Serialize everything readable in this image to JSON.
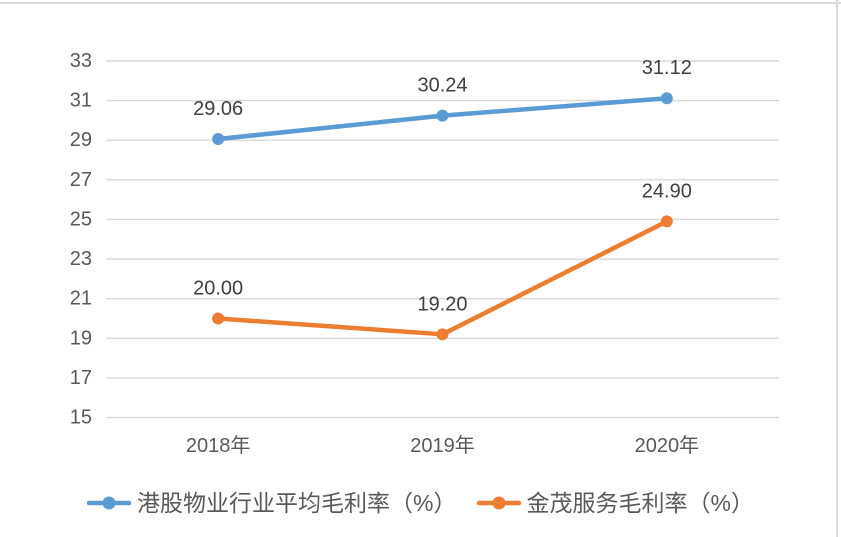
{
  "chart_data": {
    "type": "line",
    "categories": [
      "2018年",
      "2019年",
      "2020年"
    ],
    "series": [
      {
        "name": "港股物业行业平均毛利率（%）",
        "color": "#5B9BD5",
        "values": [
          29.06,
          30.24,
          31.12
        ],
        "data_labels": [
          "29.06",
          "30.24",
          "31.12"
        ]
      },
      {
        "name": "金茂服务毛利率（%）",
        "color": "#ED7D31",
        "values": [
          20.0,
          19.2,
          24.9
        ],
        "data_labels": [
          "20.00",
          "19.20",
          "24.90"
        ]
      }
    ],
    "y_axis": {
      "min": 15,
      "max": 33,
      "step": 2,
      "tick_labels": [
        "15",
        "17",
        "19",
        "21",
        "23",
        "25",
        "27",
        "29",
        "31",
        "33"
      ]
    },
    "x_axis": {
      "tick_labels": [
        "2018年",
        "2019年",
        "2020年"
      ]
    },
    "grid": true,
    "legend_position": "bottom",
    "marker_shape": "circle",
    "colors": {
      "gridline": "#D9D9D9",
      "frame_border": "#D9D9D9",
      "axis_text": "#595959",
      "data_label_text": "#404040",
      "legend_text": "#595959",
      "background": "#FFFFFF"
    }
  }
}
